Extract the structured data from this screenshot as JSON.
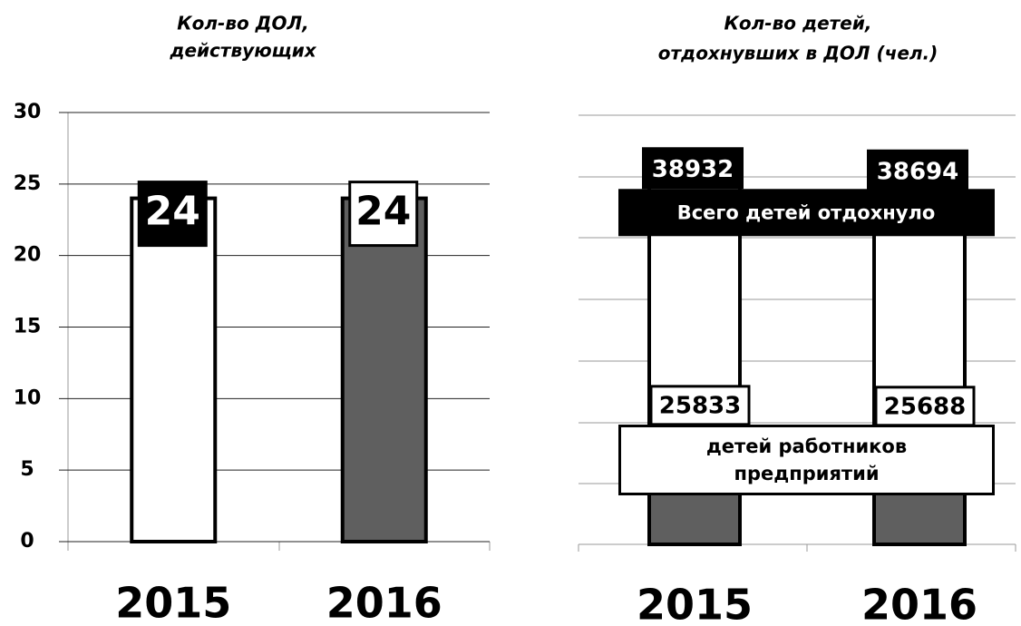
{
  "chart_data": [
    {
      "type": "bar",
      "title": [
        "Кол-во ДОЛ,",
        "действующих"
      ],
      "categories": [
        "2015",
        "2016"
      ],
      "values": [
        24,
        24
      ],
      "colors": [
        "#ffffff",
        "#5f5f5f"
      ],
      "ylim": [
        0,
        30
      ],
      "yticks": [
        0,
        5,
        10,
        15,
        20,
        25,
        30
      ],
      "grid": true
    },
    {
      "type": "stacked_bar",
      "title": [
        "Кол-во детей,",
        "отдохнувших в ДОЛ (чел.)"
      ],
      "categories": [
        "2015",
        "2016"
      ],
      "series": [
        {
          "color": "#5f5f5f",
          "values": [
            13099,
            13006
          ]
        },
        {
          "name": "детей работников предприятий",
          "color": "#ffffff",
          "values": [
            25833,
            25688
          ]
        }
      ],
      "totals": [
        38932,
        38694
      ],
      "total_label": "Всего детей отдохнуло",
      "ylim": [
        0,
        45500
      ],
      "grid": true
    }
  ]
}
